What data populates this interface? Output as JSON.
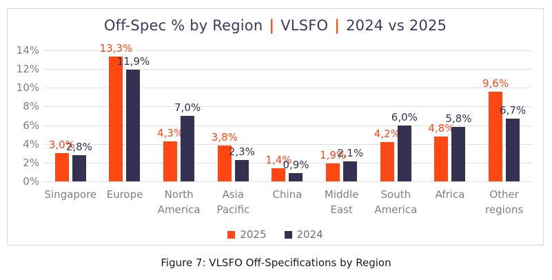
{
  "title": {
    "parts": [
      "Off-Spec % by Region",
      "VLSFO",
      "2024 vs 2025"
    ],
    "separator": "|"
  },
  "caption": "Figure 7: VLSFO Off-Specifications by Region",
  "colors": {
    "series_2025": "#fe4713",
    "series_2024": "#343153",
    "title_text": "#3b3962",
    "separator": "#fa531f",
    "axis_text": "#7f7f7f",
    "gridline": "#e0e0e0",
    "box_border": "#d9d9d9",
    "caption_text": "#1a1a1a"
  },
  "chart_data": {
    "type": "bar",
    "title": "Off-Spec % by Region | VLSFO | 2024 vs 2025",
    "xlabel": "",
    "ylabel": "",
    "ylim": [
      0,
      14
    ],
    "yticks": [
      "14%",
      "12%",
      "10%",
      "8%",
      "6%",
      "4%",
      "2%",
      "0%"
    ],
    "grid": true,
    "legend_position": "bottom",
    "categories": [
      "Singapore",
      "Europe",
      "North America",
      "Asia Pacific",
      "China",
      "Middle East",
      "South America",
      "Africa",
      "Other regions"
    ],
    "category_lines": [
      [
        "Singapore"
      ],
      [
        "Europe"
      ],
      [
        "North",
        "America"
      ],
      [
        "Asia",
        "Pacific"
      ],
      [
        "China"
      ],
      [
        "Middle",
        "East"
      ],
      [
        "South",
        "America"
      ],
      [
        "Africa"
      ],
      [
        "Other",
        "regions"
      ]
    ],
    "series": [
      {
        "name": "2025",
        "color": "#fe4713",
        "values": [
          3.0,
          13.3,
          4.3,
          3.8,
          1.4,
          1.9,
          4.2,
          4.8,
          9.6
        ],
        "labels": [
          "3,0%",
          "13,3%",
          "4,3%",
          "3,8%",
          "1,4%",
          "1,9%",
          "4,2%",
          "4,8%",
          "9,6%"
        ]
      },
      {
        "name": "2024",
        "color": "#343153",
        "values": [
          2.8,
          11.9,
          7.0,
          2.3,
          0.9,
          2.1,
          6.0,
          5.8,
          6.7
        ],
        "labels": [
          "2,8%",
          "11,9%",
          "7,0%",
          "2,3%",
          "0,9%",
          "2,1%",
          "6,0%",
          "5,8%",
          "6,7%"
        ]
      }
    ]
  }
}
